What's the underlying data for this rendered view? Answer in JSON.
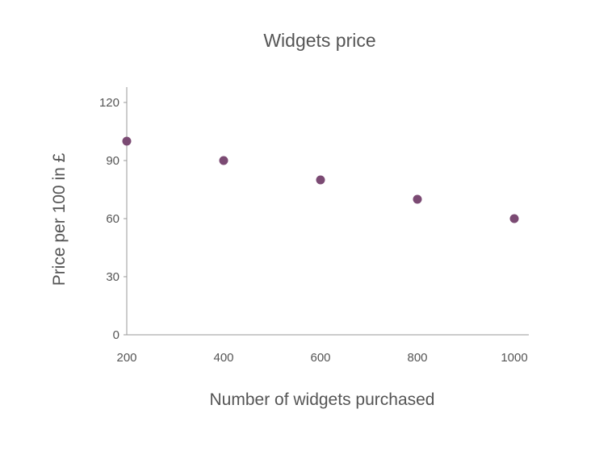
{
  "chart_data": {
    "type": "scatter",
    "title": "Widgets price",
    "xlabel": "Number of widgets purchased",
    "ylabel": "Price per 100 in £",
    "x": [
      200,
      400,
      600,
      800,
      1000
    ],
    "y": [
      100,
      90,
      80,
      70,
      60
    ],
    "xlim": [
      200,
      1030
    ],
    "ylim": [
      0,
      128
    ],
    "xticks": [
      200,
      400,
      600,
      800,
      1000
    ],
    "yticks": [
      0,
      30,
      60,
      90,
      120
    ],
    "grid": false,
    "legend": "none",
    "marker_color": "#7b4a73"
  }
}
